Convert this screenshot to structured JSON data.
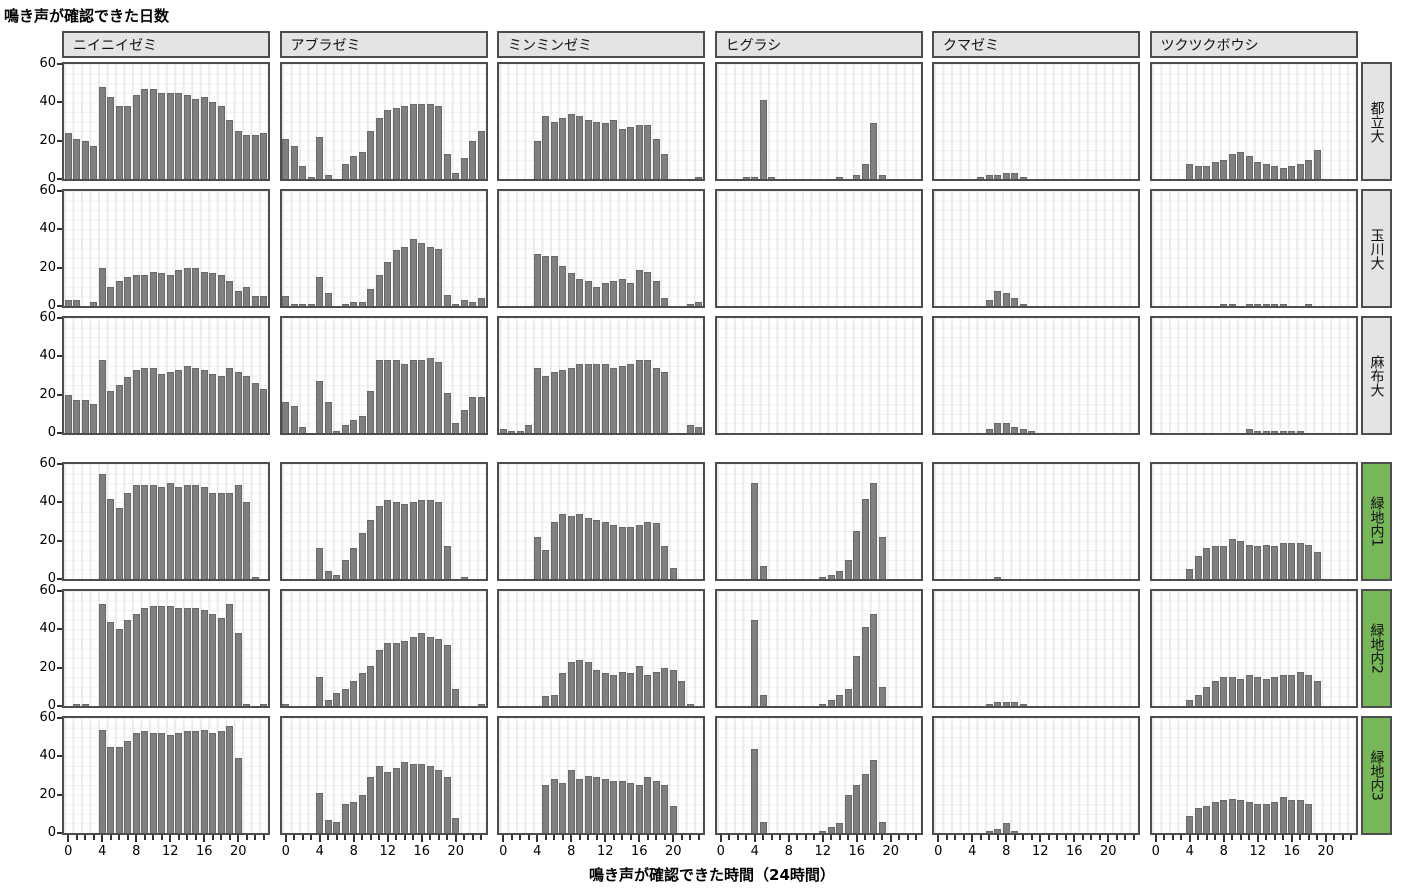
{
  "chart_data": {
    "type": "bar",
    "variant": "faceted-histogram-small-multiples",
    "title": "鳴き声が確認できた日数",
    "xlabel": "鳴き声が確認できた時間（24時間）",
    "ylabel": "鳴き声が確認できた日数",
    "ylim": [
      0,
      60
    ],
    "yticks": [
      60,
      40,
      20,
      0
    ],
    "xticks": [
      0,
      4,
      8,
      12,
      16,
      20
    ],
    "x_hours": [
      0,
      1,
      2,
      3,
      4,
      5,
      6,
      7,
      8,
      9,
      10,
      11,
      12,
      13,
      14,
      15,
      16,
      17,
      18,
      19,
      20,
      21,
      22,
      23
    ],
    "grid": "on",
    "legend": "none",
    "colors": {
      "bar": "#7f7f7f",
      "bar_border": "#696969",
      "panel_border": "#4d4d4d",
      "header_bg": "#e4e4e4",
      "row_label_gray_bg": "#e4e4e4",
      "row_label_green_bg": "#78b65a",
      "gridline": "#ebebeb"
    },
    "columns": [
      "ニイニイゼミ",
      "アブラゼミ",
      "ミンミンゼミ",
      "ヒグラシ",
      "クマゼミ",
      "ツクツクボウシ"
    ],
    "rows": [
      {
        "label": "都立大",
        "group": "gray"
      },
      {
        "label": "玉川大",
        "group": "gray"
      },
      {
        "label": "麻布大",
        "group": "gray"
      },
      {
        "label": "緑地内1",
        "group": "green"
      },
      {
        "label": "緑地内2",
        "group": "green"
      },
      {
        "label": "緑地内3",
        "group": "green"
      }
    ],
    "matrix": [
      [
        [
          24,
          21,
          20,
          17,
          48,
          43,
          38,
          38,
          44,
          47,
          47,
          45,
          45,
          45,
          44,
          42,
          43,
          40,
          38,
          31,
          25,
          23,
          23,
          24
        ],
        [
          21,
          17,
          7,
          1,
          22,
          2,
          0,
          8,
          12,
          14,
          25,
          32,
          36,
          37,
          38,
          39,
          39,
          39,
          38,
          13,
          3,
          11,
          20,
          25
        ],
        [
          0,
          0,
          0,
          0,
          20,
          33,
          30,
          32,
          34,
          33,
          31,
          30,
          29,
          31,
          26,
          27,
          28,
          28,
          21,
          13,
          0,
          0,
          0,
          1
        ],
        [
          0,
          0,
          0,
          1,
          1,
          41,
          1,
          0,
          0,
          0,
          0,
          0,
          0,
          0,
          1,
          0,
          2,
          8,
          29,
          2,
          0,
          0,
          0,
          0
        ],
        [
          0,
          0,
          0,
          0,
          0,
          1,
          2,
          2,
          3,
          3,
          1,
          0,
          0,
          0,
          0,
          0,
          0,
          0,
          0,
          0,
          0,
          0,
          0,
          0
        ],
        [
          0,
          0,
          0,
          0,
          8,
          7,
          7,
          9,
          10,
          13,
          14,
          12,
          9,
          8,
          7,
          6,
          7,
          8,
          10,
          15,
          0,
          0,
          0,
          0
        ]
      ],
      [
        [
          3,
          3,
          0,
          2,
          20,
          10,
          13,
          15,
          16,
          16,
          18,
          17,
          16,
          19,
          20,
          20,
          18,
          17,
          16,
          13,
          8,
          10,
          5,
          5
        ],
        [
          5,
          1,
          1,
          1,
          15,
          7,
          0,
          1,
          2,
          2,
          9,
          16,
          23,
          29,
          31,
          35,
          33,
          31,
          30,
          6,
          1,
          3,
          2,
          4
        ],
        [
          0,
          0,
          0,
          0,
          27,
          26,
          26,
          21,
          17,
          14,
          13,
          10,
          12,
          13,
          14,
          12,
          19,
          18,
          13,
          4,
          0,
          0,
          1,
          2
        ],
        [
          0,
          0,
          0,
          0,
          0,
          0,
          0,
          0,
          0,
          0,
          0,
          0,
          0,
          0,
          0,
          0,
          0,
          0,
          0,
          0,
          0,
          0,
          0,
          0
        ],
        [
          0,
          0,
          0,
          0,
          0,
          0,
          3,
          8,
          7,
          4,
          1,
          0,
          0,
          0,
          0,
          0,
          0,
          0,
          0,
          0,
          0,
          0,
          0,
          0
        ],
        [
          0,
          0,
          0,
          0,
          0,
          0,
          0,
          0,
          1,
          1,
          0,
          1,
          1,
          1,
          1,
          1,
          0,
          0,
          1,
          0,
          0,
          0,
          0,
          0
        ]
      ],
      [
        [
          20,
          17,
          17,
          15,
          38,
          22,
          25,
          29,
          33,
          34,
          34,
          31,
          32,
          33,
          35,
          34,
          33,
          31,
          30,
          34,
          32,
          30,
          26,
          23
        ],
        [
          16,
          14,
          3,
          0,
          27,
          16,
          1,
          4,
          7,
          9,
          22,
          38,
          38,
          38,
          36,
          38,
          38,
          39,
          37,
          21,
          5,
          12,
          19,
          19
        ],
        [
          2,
          1,
          1,
          4,
          34,
          30,
          32,
          33,
          34,
          36,
          36,
          36,
          36,
          34,
          35,
          36,
          38,
          38,
          34,
          32,
          0,
          0,
          4,
          3
        ],
        [
          0,
          0,
          0,
          0,
          0,
          0,
          0,
          0,
          0,
          0,
          0,
          0,
          0,
          0,
          0,
          0,
          0,
          0,
          0,
          0,
          0,
          0,
          0,
          0
        ],
        [
          0,
          0,
          0,
          0,
          0,
          0,
          2,
          5,
          5,
          3,
          2,
          1,
          0,
          0,
          0,
          0,
          0,
          0,
          0,
          0,
          0,
          0,
          0,
          0
        ],
        [
          0,
          0,
          0,
          0,
          0,
          0,
          0,
          0,
          0,
          0,
          0,
          2,
          1,
          1,
          1,
          1,
          1,
          1,
          0,
          0,
          0,
          0,
          0,
          0
        ]
      ],
      [
        [
          0,
          0,
          0,
          0,
          55,
          42,
          37,
          45,
          49,
          49,
          49,
          48,
          50,
          48,
          49,
          49,
          48,
          45,
          45,
          45,
          49,
          40,
          1,
          0
        ],
        [
          0,
          0,
          0,
          0,
          16,
          4,
          2,
          10,
          16,
          24,
          31,
          38,
          41,
          40,
          39,
          40,
          41,
          41,
          40,
          17,
          0,
          1,
          0,
          0
        ],
        [
          0,
          0,
          0,
          0,
          22,
          15,
          30,
          34,
          33,
          34,
          32,
          31,
          30,
          28,
          27,
          27,
          28,
          30,
          29,
          17,
          6,
          0,
          0,
          0
        ],
        [
          0,
          0,
          0,
          0,
          50,
          7,
          0,
          0,
          0,
          0,
          0,
          0,
          1,
          2,
          4,
          10,
          25,
          42,
          50,
          22,
          0,
          0,
          0,
          0
        ],
        [
          0,
          0,
          0,
          0,
          0,
          0,
          0,
          1,
          0,
          0,
          0,
          0,
          0,
          0,
          0,
          0,
          0,
          0,
          0,
          0,
          0,
          0,
          0,
          0
        ],
        [
          0,
          0,
          0,
          0,
          5,
          12,
          16,
          17,
          17,
          21,
          20,
          18,
          17,
          18,
          17,
          19,
          19,
          19,
          18,
          14,
          0,
          0,
          0,
          0
        ]
      ],
      [
        [
          0,
          1,
          1,
          0,
          53,
          44,
          40,
          45,
          48,
          51,
          52,
          52,
          52,
          51,
          51,
          51,
          50,
          48,
          46,
          53,
          38,
          1,
          0,
          1
        ],
        [
          1,
          0,
          0,
          0,
          15,
          3,
          7,
          9,
          13,
          17,
          21,
          29,
          33,
          33,
          34,
          36,
          38,
          36,
          35,
          32,
          9,
          0,
          0,
          1
        ],
        [
          0,
          0,
          0,
          0,
          0,
          5,
          6,
          17,
          23,
          24,
          23,
          19,
          17,
          16,
          18,
          17,
          21,
          16,
          18,
          20,
          19,
          13,
          1,
          0
        ],
        [
          0,
          0,
          0,
          0,
          45,
          6,
          0,
          0,
          0,
          0,
          0,
          0,
          1,
          3,
          6,
          9,
          26,
          41,
          48,
          10,
          0,
          0,
          0,
          0
        ],
        [
          0,
          0,
          0,
          0,
          0,
          0,
          1,
          2,
          2,
          2,
          1,
          0,
          0,
          0,
          0,
          0,
          0,
          0,
          0,
          0,
          0,
          0,
          0,
          0
        ],
        [
          0,
          0,
          0,
          0,
          3,
          6,
          10,
          13,
          15,
          15,
          14,
          16,
          15,
          14,
          15,
          16,
          16,
          18,
          16,
          13,
          0,
          0,
          0,
          0
        ]
      ],
      [
        [
          0,
          0,
          0,
          0,
          54,
          45,
          45,
          48,
          52,
          53,
          52,
          52,
          51,
          52,
          53,
          53,
          54,
          52,
          53,
          56,
          39,
          0,
          0,
          0
        ],
        [
          0,
          0,
          0,
          0,
          21,
          7,
          6,
          15,
          16,
          20,
          29,
          35,
          32,
          34,
          37,
          36,
          36,
          35,
          33,
          29,
          8,
          0,
          0,
          0
        ],
        [
          0,
          0,
          0,
          0,
          0,
          25,
          28,
          26,
          33,
          28,
          30,
          29,
          28,
          27,
          27,
          26,
          25,
          29,
          27,
          25,
          14,
          0,
          0,
          0
        ],
        [
          0,
          0,
          0,
          0,
          44,
          6,
          0,
          0,
          0,
          0,
          0,
          0,
          1,
          3,
          5,
          20,
          25,
          31,
          38,
          6,
          0,
          0,
          0,
          0
        ],
        [
          0,
          0,
          0,
          0,
          0,
          0,
          1,
          2,
          5,
          1,
          0,
          0,
          0,
          0,
          0,
          0,
          0,
          0,
          0,
          0,
          0,
          0,
          0,
          0
        ],
        [
          0,
          0,
          0,
          0,
          9,
          13,
          14,
          16,
          17,
          18,
          17,
          16,
          15,
          15,
          16,
          19,
          17,
          17,
          15,
          0,
          0,
          0,
          0,
          0
        ]
      ]
    ]
  }
}
